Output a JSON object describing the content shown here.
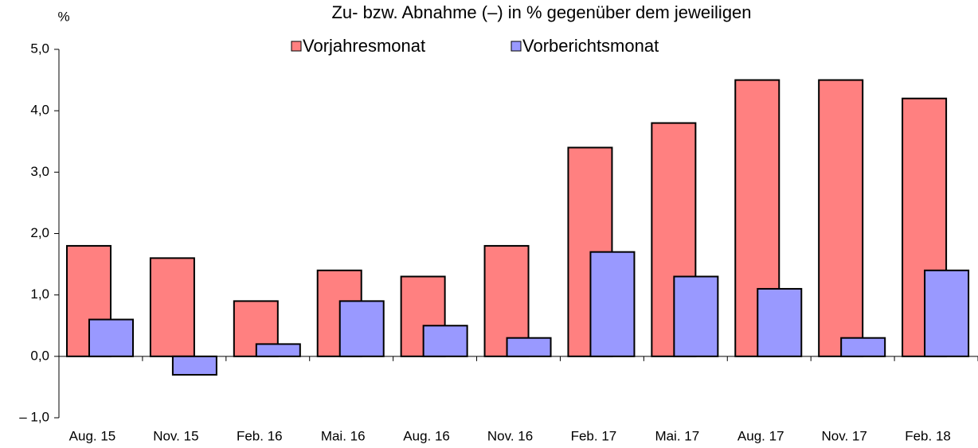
{
  "chart_data": {
    "type": "bar",
    "title": "Zu- bzw. Abnahme (–) in % gegenüber dem jeweiligen",
    "y_label": "%",
    "categories": [
      "Aug. 15",
      "Nov. 15",
      "Feb. 16",
      "Mai. 16",
      "Aug. 16",
      "Nov. 16",
      "Feb. 17",
      "Mai. 17",
      "Aug. 17",
      "Nov. 17",
      "Feb. 18"
    ],
    "series": [
      {
        "name": "Vorjahresmonat",
        "color": "#ff8080",
        "values": [
          1.8,
          1.6,
          0.9,
          1.4,
          1.3,
          1.8,
          3.4,
          3.8,
          4.5,
          4.5,
          4.2
        ]
      },
      {
        "name": "Vorberichtsmonat",
        "color": "#9999ff",
        "values": [
          0.6,
          -0.3,
          0.2,
          0.9,
          0.5,
          0.3,
          1.7,
          1.3,
          1.1,
          0.3,
          1.4
        ]
      }
    ],
    "ylim": [
      -1,
      5
    ],
    "yticks": [
      {
        "value": -1,
        "label": "– 1,0"
      },
      {
        "value": 0,
        "label": "0,0"
      },
      {
        "value": 1,
        "label": "1,0"
      },
      {
        "value": 2,
        "label": "2,0"
      },
      {
        "value": 3,
        "label": "3,0"
      },
      {
        "value": 4,
        "label": "4,0"
      },
      {
        "value": 5,
        "label": "5,0"
      }
    ],
    "grid": false
  }
}
